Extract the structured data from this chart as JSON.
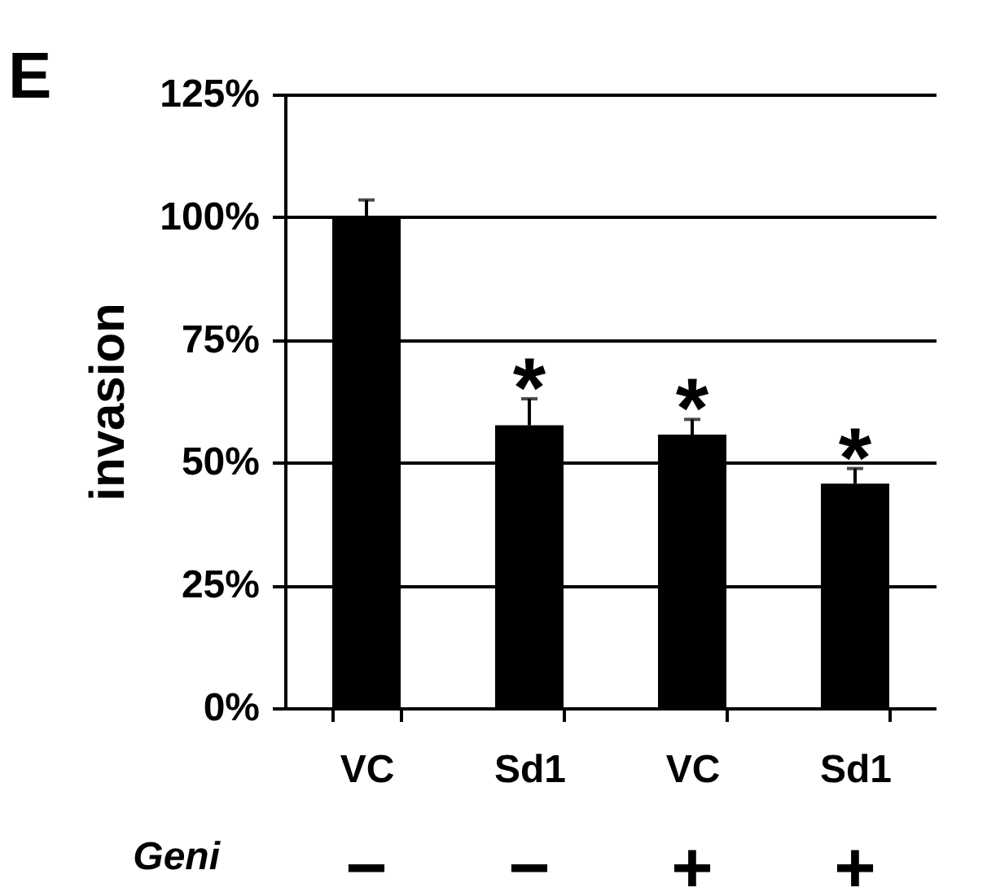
{
  "chart_data": {
    "type": "bar",
    "ylabel": "invasion",
    "categories": [
      "VC",
      "Sd1",
      "VC",
      "Sd1"
    ],
    "values": [
      100,
      57.6,
      55.7,
      45.7
    ],
    "errors": [
      [
        100,
        103.5
      ],
      [
        57.6,
        63.0
      ],
      [
        55.7,
        58.8
      ],
      [
        45.7,
        48.8
      ]
    ],
    "color": "#000000",
    "ylim": [
      0,
      125
    ],
    "yticks": [
      {
        "value": 0,
        "label": "0%"
      },
      {
        "value": 25,
        "label": "25%"
      },
      {
        "value": 50,
        "label": "50%"
      },
      {
        "value": 75,
        "label": "75%"
      },
      {
        "value": 100,
        "label": "100%"
      },
      {
        "value": 125,
        "label": "125%"
      }
    ],
    "grid": "y",
    "annotations": [
      "E",
      "Geni",
      "−",
      "−",
      "+",
      "+",
      "*",
      "*",
      "*"
    ]
  }
}
